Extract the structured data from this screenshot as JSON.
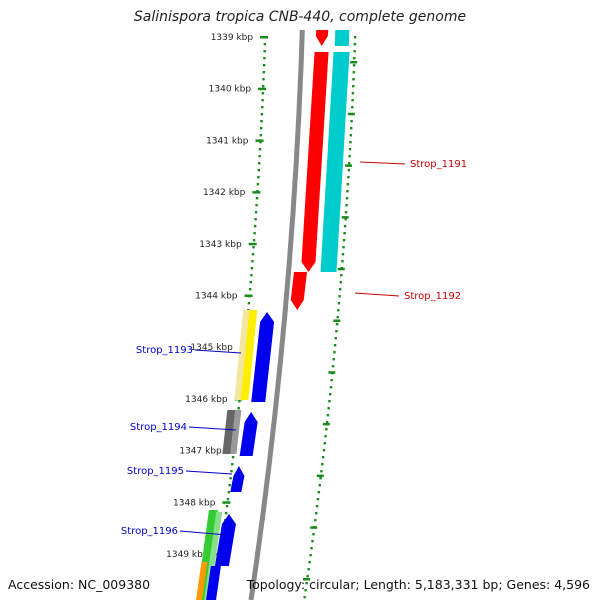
{
  "title": "Salinispora tropica CNB-440, complete genome",
  "footer": {
    "accession": "Accession: NC_009380",
    "stats": "Topology: circular; Length: 5,183,331 bp; Genes: 4,596"
  },
  "ticks": [
    "1339 kbp",
    "1340 kbp",
    "1341 kbp",
    "1342 kbp",
    "1343 kbp",
    "1344 kbp",
    "1345 kbp",
    "1346 kbp",
    "1347 kbp",
    "1348 kbp",
    "1349 kbp"
  ],
  "genes": [
    {
      "name": "Strop_1191",
      "color": "#cc0000",
      "side": "right"
    },
    {
      "name": "Strop_1192",
      "color": "#cc0000",
      "side": "right"
    },
    {
      "name": "Strop_1193",
      "color": "#0000cc",
      "side": "left"
    },
    {
      "name": "Strop_1194",
      "color": "#0000cc",
      "side": "left"
    },
    {
      "name": "Strop_1195",
      "color": "#0000cc",
      "side": "left"
    },
    {
      "name": "Strop_1196",
      "color": "#0000cc",
      "side": "left"
    }
  ],
  "colors": {
    "forward_cds": "#ff0000",
    "reverse_cds": "#00cccc",
    "blast_blue": "#0000ee",
    "backbone": "#888888",
    "ticks_dots": "#1a8a1a",
    "yellow": "#ffee00",
    "grey": "#666666",
    "green": "#33cc33",
    "orange": "#ff9900"
  }
}
